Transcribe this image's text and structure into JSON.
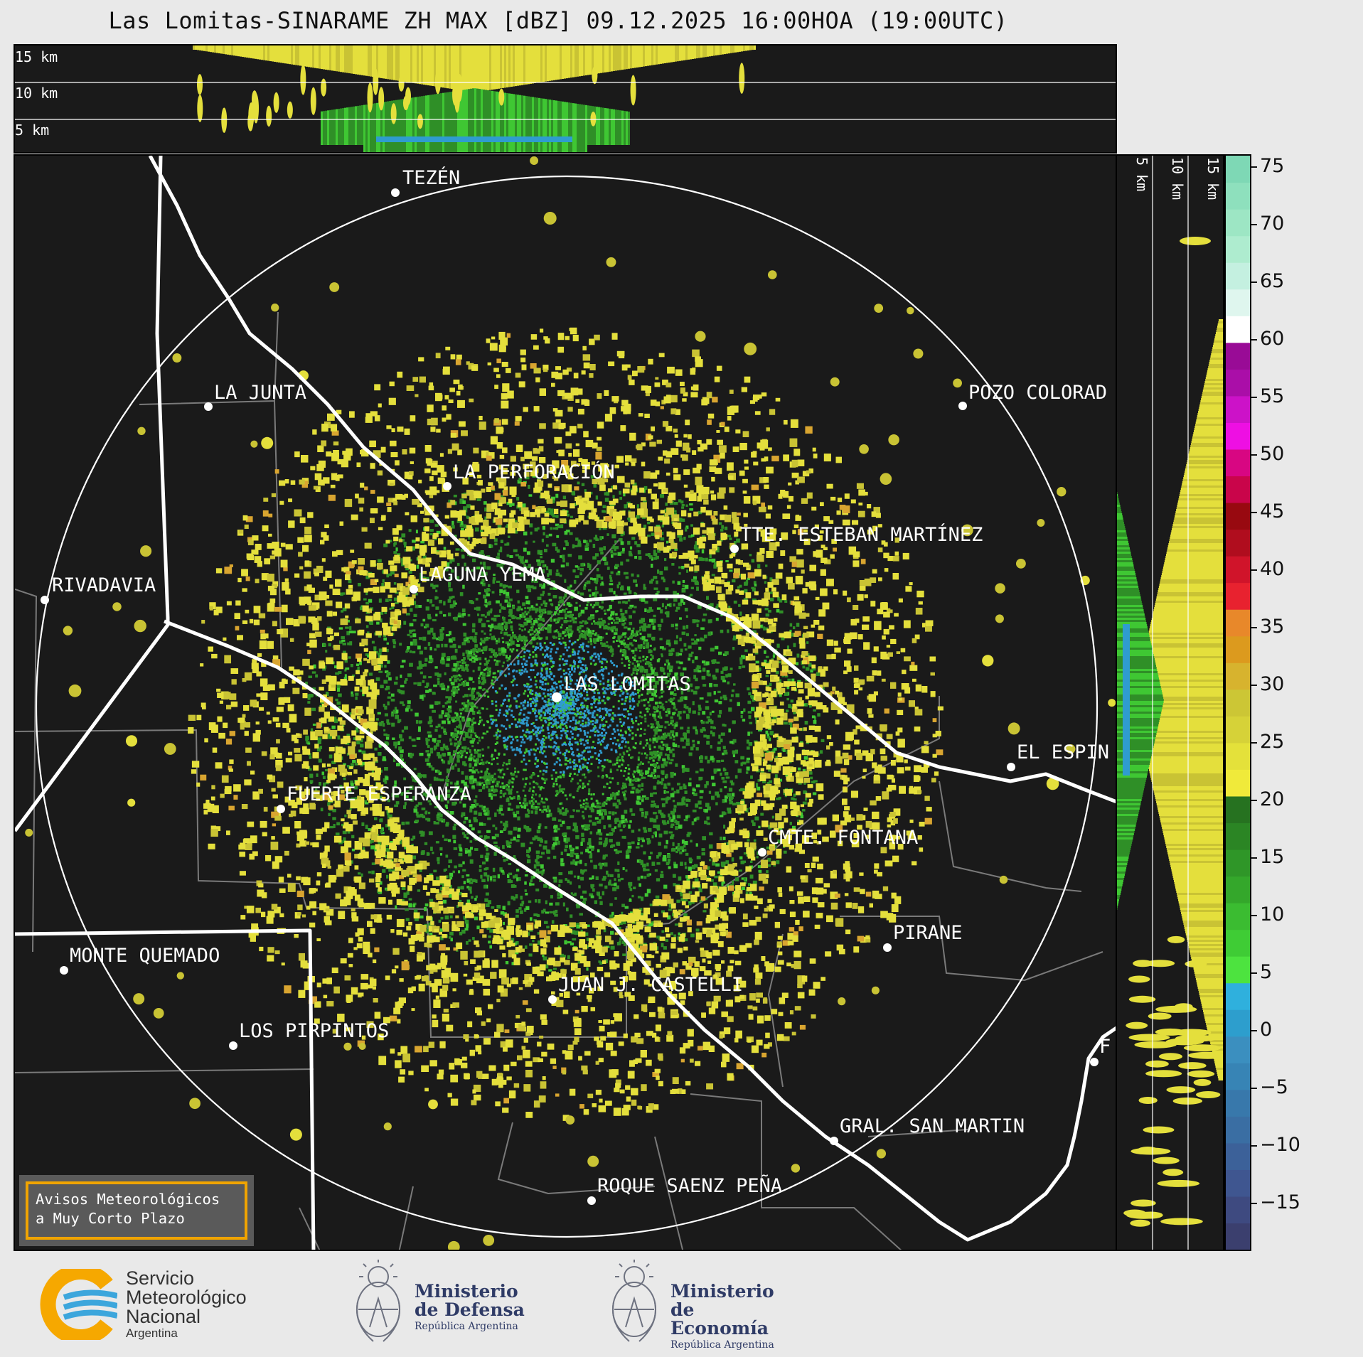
{
  "title": "Las Lomitas-SINARAME ZH MAX [dBZ] 09.12.2025 16:00HOA (19:00UTC)",
  "top_panel": {
    "height_labels": [
      "15 km",
      "10 km",
      "5 km"
    ]
  },
  "side_panel": {
    "height_labels": [
      "5 km",
      "10 km",
      "15 km"
    ]
  },
  "locations": [
    {
      "name": "TEZÉN"
    },
    {
      "name": "LA JUNTA"
    },
    {
      "name": "POZO COLORAD"
    },
    {
      "name": "LA PERFORACIÓN"
    },
    {
      "name": "TTE. ESTEBAN MARTÍNEZ"
    },
    {
      "name": "RIVADAVIA"
    },
    {
      "name": "LAGUNA YEMA"
    },
    {
      "name": "LAS LOMITAS"
    },
    {
      "name": "EL ESPIN"
    },
    {
      "name": "FUERTE ESPERANZA"
    },
    {
      "name": "CMTE. FONTANA"
    },
    {
      "name": "PIRANE"
    },
    {
      "name": "MONTE QUEMADO"
    },
    {
      "name": "JUAN J. CASTELLI"
    },
    {
      "name": "LOS PIRPINTOS"
    },
    {
      "name": "GRAL. SAN MARTIN"
    },
    {
      "name": "ROQUE SAENZ PEÑA"
    },
    {
      "name": "F"
    }
  ],
  "colorbar": {
    "unit": "dBZ",
    "min": -19,
    "max": 76,
    "ticks": [
      "75",
      "70",
      "65",
      "60",
      "55",
      "50",
      "45",
      "40",
      "35",
      "30",
      "25",
      "20",
      "15",
      "10",
      "5",
      "0",
      "−5",
      "−10",
      "−15"
    ],
    "colors": [
      "#3b3f6e",
      "#3e4a80",
      "#3f5690",
      "#3c6199",
      "#3a6ea3",
      "#3878ab",
      "#3784b5",
      "#3b8fbf",
      "#2d9ecd",
      "#2fb0dd",
      "#4de33f",
      "#3fcc35",
      "#3bbc31",
      "#34a72b",
      "#2f9628",
      "#2b8524",
      "#267220",
      "#f0ea3a",
      "#e4e13a",
      "#d6d238",
      "#ccc635",
      "#d7b32e",
      "#dc9a1e",
      "#e8882a",
      "#e8222f",
      "#d0142a",
      "#b00d1e",
      "#980910",
      "#c9054a",
      "#d80682",
      "#ee0fe3",
      "#cc12c8",
      "#aa0ea8",
      "#990b96",
      "#ffffff",
      "#dff6ee",
      "#c4f0e0",
      "#aeeccf",
      "#9de6c4",
      "#8ee0bd",
      "#7ed8b5"
    ]
  },
  "warning": {
    "line1": "Avisos Meteorológicos",
    "line2": "a Muy Corto Plazo"
  },
  "logos": {
    "smn": {
      "line1": "Servicio",
      "line2": "Meteorológico",
      "line3": "Nacional",
      "line4": "Argentina"
    },
    "defensa": {
      "line1": "Ministerio",
      "line2": "de Defensa",
      "line3": "República Argentina"
    },
    "economia": {
      "line1": "Ministerio",
      "line2": "de Economía",
      "line3": "República Argentina"
    }
  },
  "palette": {
    "background": "#1a1a1a",
    "yellow": "#e4df3c",
    "olive": "#c9c334",
    "green": "#2f8f27",
    "bright_green": "#3fc733",
    "blue": "#2f9ccf",
    "orange": "#d9a530",
    "boundary": "#ffffff",
    "dept_line": "#7a7a7a"
  }
}
